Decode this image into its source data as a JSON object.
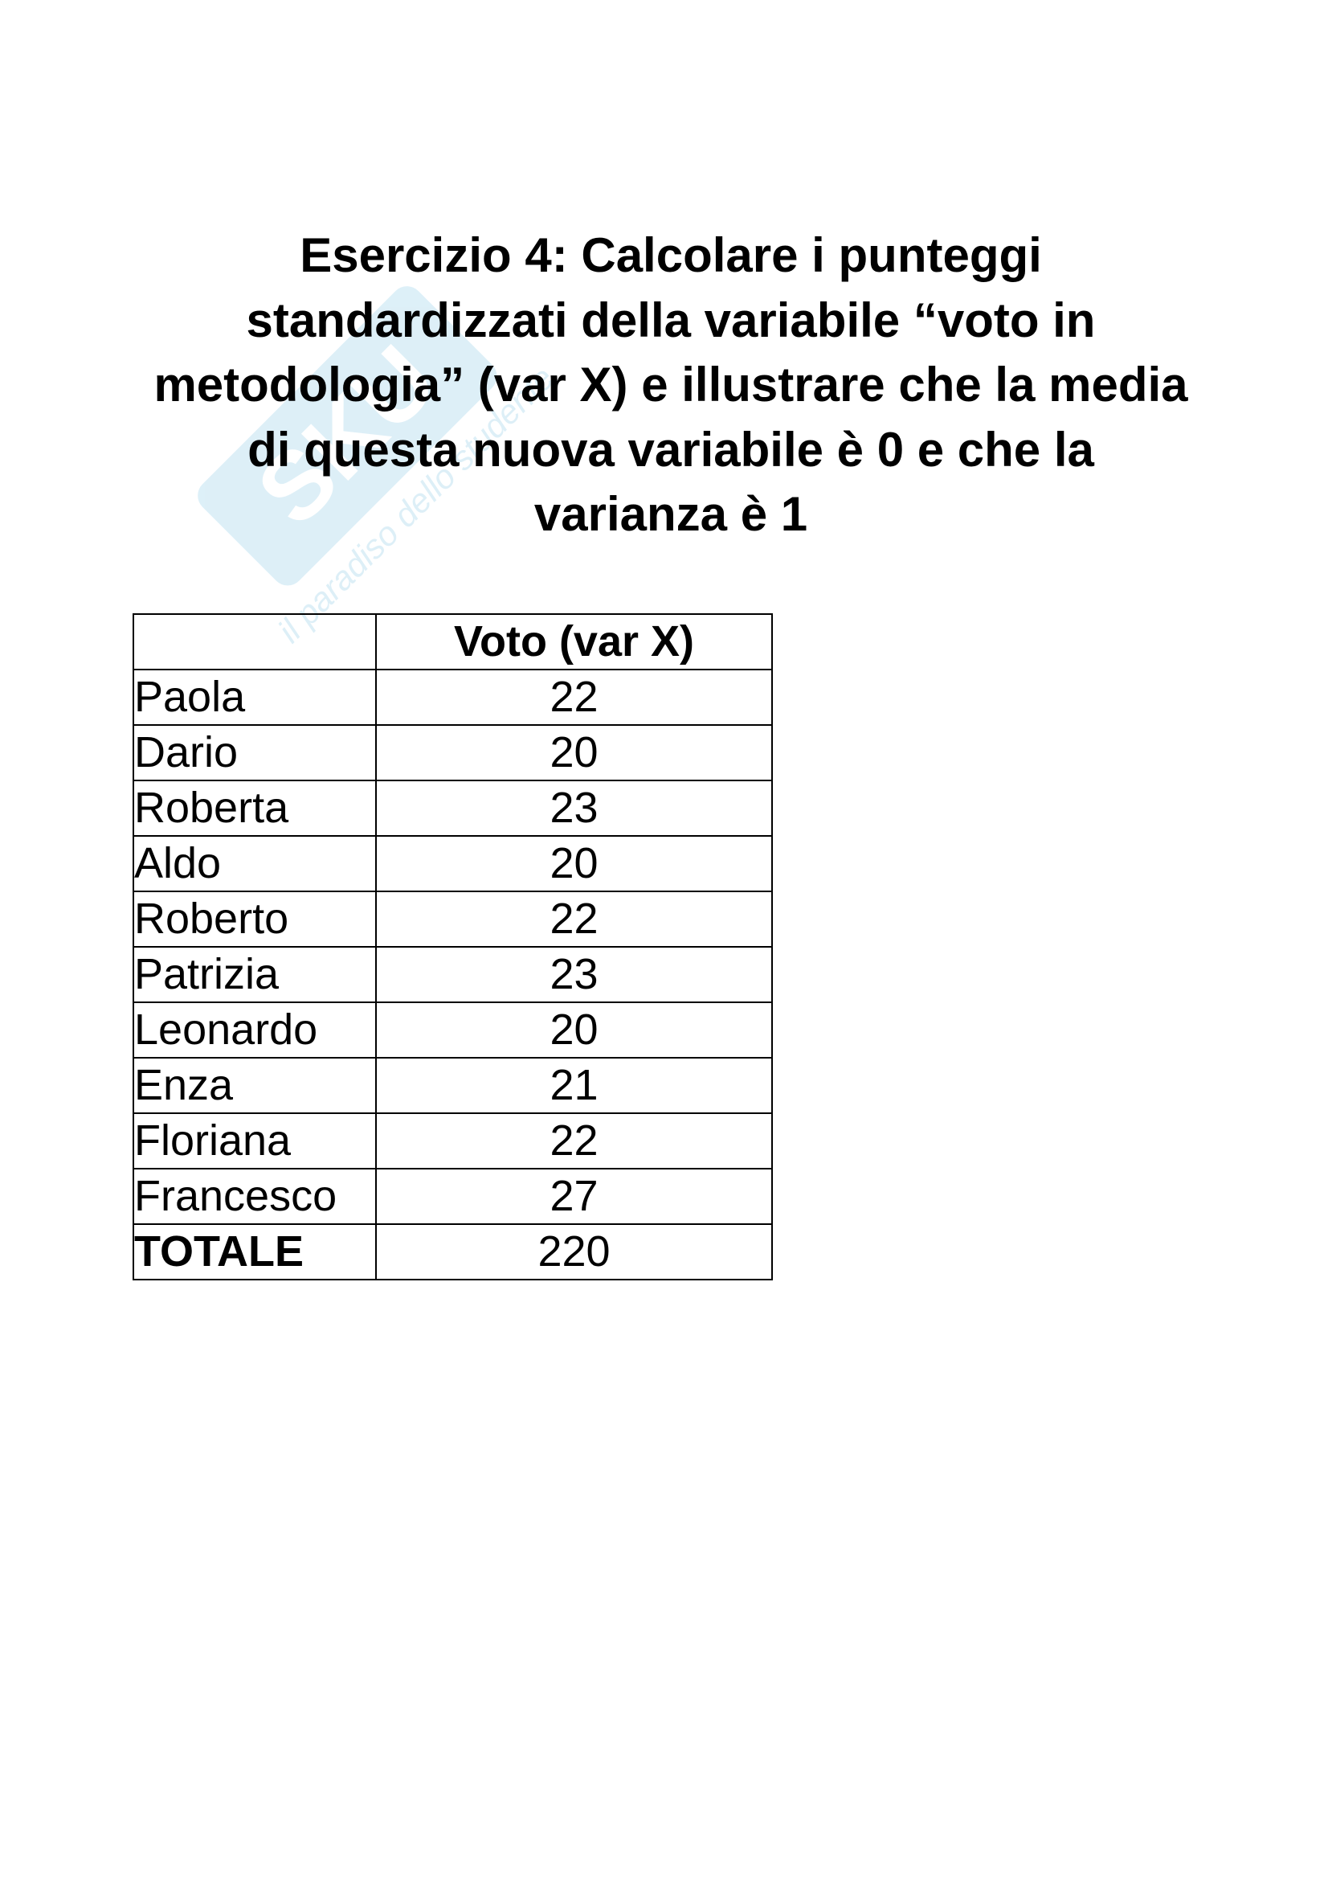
{
  "watermark": {
    "brand": "SKUOLA.net",
    "tagline": "il paradiso dello studente",
    "color": "#bfe3f2"
  },
  "title": "Esercizio 4: Calcolare i punteggi standardizzati della variabile “voto in metodologia” (var X) e illustrare che la media di questa nuova variabile è 0 e che la varianza è 1",
  "table": {
    "header": [
      "",
      "Voto (var X)"
    ],
    "rows": [
      {
        "name": "Paola",
        "value": "22"
      },
      {
        "name": "Dario",
        "value": "20"
      },
      {
        "name": "Roberta",
        "value": "23"
      },
      {
        "name": "Aldo",
        "value": "20"
      },
      {
        "name": "Roberto",
        "value": "22"
      },
      {
        "name": "Patrizia",
        "value": "23"
      },
      {
        "name": "Leonardo",
        "value": "20"
      },
      {
        "name": "Enza",
        "value": "21"
      },
      {
        "name": "Floriana",
        "value": "22"
      },
      {
        "name": "Francesco",
        "value": "27"
      }
    ],
    "total": {
      "name": "TOTALE",
      "value": "220"
    }
  }
}
